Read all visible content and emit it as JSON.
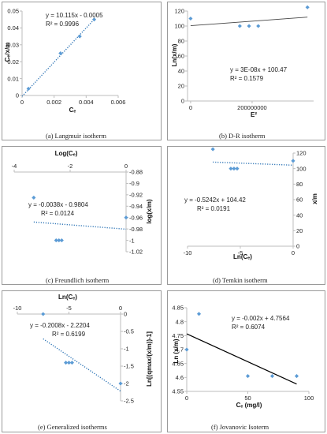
{
  "chart_data": [
    {
      "id": "a",
      "type": "scatter",
      "caption": "(a) Langmuir isotherm",
      "xlabel": "Cₑ",
      "ylabel": "Cₑ/x/m",
      "xlim": [
        0,
        0.006
      ],
      "ylim": [
        0,
        0.05
      ],
      "xticks": [
        0,
        0.002,
        0.004,
        0.006
      ],
      "xtick_labels": [
        "0",
        "0.002",
        "0.004",
        "0.006"
      ],
      "yticks": [
        0,
        0.01,
        0.02,
        0.03,
        0.04,
        0.05
      ],
      "ytick_labels": [
        "0",
        "0.01",
        "0.02",
        "0.03",
        "0.04",
        "0.05"
      ],
      "points": [
        [
          0.0004,
          0.004
        ],
        [
          0.0024,
          0.025
        ],
        [
          0.0036,
          0.035
        ],
        [
          0.0045,
          0.045
        ]
      ],
      "trendline": {
        "slope": 10.115,
        "intercept": -0.0005,
        "range": [
          0,
          0.0045
        ],
        "style": "dotted"
      },
      "equation": "y = 10.115x - 0.0005",
      "r2": "R² = 0.9996"
    },
    {
      "id": "b",
      "type": "scatter",
      "caption": "(b) D-R isotherm",
      "xlabel": "E²",
      "ylabel": "Ln(x/m)",
      "xlim": [
        -10000000,
        400000000
      ],
      "ylim": [
        0,
        120
      ],
      "xticks": [
        0,
        200000000
      ],
      "xtick_labels": [
        "0",
        "200000000"
      ],
      "yticks": [
        0,
        20,
        40,
        60,
        80,
        100,
        120
      ],
      "ytick_labels": [
        "0",
        "20",
        "40",
        "60",
        "80",
        "100",
        "120"
      ],
      "points": [
        [
          0,
          110
        ],
        [
          160000000,
          100
        ],
        [
          190000000,
          100
        ],
        [
          220000000,
          100
        ],
        [
          380000000,
          125
        ]
      ],
      "trendline": {
        "slope": 3e-08,
        "intercept": 100.47,
        "range": [
          0,
          380000000
        ],
        "style": "solid"
      },
      "equation": "y = 3E-08x + 100.47",
      "r2": "R² = 0.1579"
    },
    {
      "id": "c",
      "type": "scatter",
      "caption": "(c) Freundlich isotherm",
      "xlabel": "Log(Cₑ)",
      "ylabel": "log(x/m)",
      "xlim": [
        -4,
        0
      ],
      "ylim": [
        -1.02,
        -0.88
      ],
      "xticks": [
        -4,
        -2,
        0
      ],
      "xtick_labels": [
        "-4",
        "-2",
        "0"
      ],
      "yticks": [
        -0.88,
        -0.9,
        -0.92,
        -0.94,
        -0.96,
        -0.98,
        -1,
        -1.02
      ],
      "ytick_labels": [
        "-0.88",
        "-0.9",
        "-0.92",
        "-0.94",
        "-0.96",
        "-0.98",
        "-1",
        "-1.02"
      ],
      "points": [
        [
          -3.3,
          -0.925
        ],
        [
          -2.5,
          -1.0
        ],
        [
          -2.4,
          -1.0
        ],
        [
          -2.3,
          -1.0
        ],
        [
          0,
          -0.96
        ]
      ],
      "trendline": {
        "slope": -0.0038,
        "intercept": -0.9804,
        "range": [
          -3.3,
          0
        ],
        "style": "dotted"
      },
      "equation": "y = -0.0038x - 0.9804",
      "r2": "R² = 0.0124"
    },
    {
      "id": "d",
      "type": "scatter",
      "caption": "(d) Temkin isotherm",
      "xlabel": "Ln(Cₑ)",
      "ylabel": "x/m",
      "xlim": [
        -10,
        0
      ],
      "ylim": [
        0,
        120
      ],
      "xticks": [
        -10,
        -5,
        0
      ],
      "xtick_labels": [
        "-10",
        "-5",
        "0"
      ],
      "yticks": [
        0,
        20,
        40,
        60,
        80,
        100,
        120
      ],
      "ytick_labels": [
        "0",
        "20",
        "40",
        "60",
        "80",
        "100",
        "120"
      ],
      "points": [
        [
          -7.6,
          125
        ],
        [
          -5.9,
          100
        ],
        [
          -5.6,
          100
        ],
        [
          -5.3,
          100
        ],
        [
          0,
          110
        ]
      ],
      "trendline": {
        "slope": -0.5242,
        "intercept": 104.42,
        "range": [
          -7.6,
          0
        ],
        "style": "dotted"
      },
      "equation": "y = -0.5242x + 104.42",
      "r2": "R² = 0.0191"
    },
    {
      "id": "e",
      "type": "scatter",
      "caption": "(e) Generalized isotherms",
      "xlabel": "Ln(Cₑ)",
      "ylabel": "Ln[(qmax/(x/m))-1]",
      "xlim": [
        -10,
        0
      ],
      "ylim": [
        -2.5,
        0
      ],
      "xticks": [
        -10,
        -5,
        0
      ],
      "xtick_labels": [
        "-10",
        "-5",
        "0"
      ],
      "yticks": [
        0,
        -0.5,
        -1,
        -1.5,
        -2,
        -2.5
      ],
      "ytick_labels": [
        "0",
        "-0.5",
        "-1",
        "-1.5",
        "-2",
        "-2.5"
      ],
      "points": [
        [
          -7.5,
          0
        ],
        [
          -5.3,
          -1.4
        ],
        [
          -5.0,
          -1.4
        ],
        [
          -4.7,
          -1.4
        ],
        [
          0,
          -2.0
        ]
      ],
      "trendline": {
        "slope": -0.2008,
        "intercept": -2.2204,
        "range": [
          -7.5,
          0
        ],
        "style": "dotted"
      },
      "equation": "y = -0.2008x - 2.2204",
      "r2": "R² = 0.6199"
    },
    {
      "id": "f",
      "type": "scatter",
      "caption": "(f) Jovanovic Isoterm",
      "xlabel": "Cₑ (mg/l)",
      "ylabel": "Ln (x/m)",
      "xlim": [
        0,
        100
      ],
      "ylim": [
        4.55,
        4.85
      ],
      "xticks": [
        0,
        50,
        100
      ],
      "xtick_labels": [
        "0",
        "50",
        "100"
      ],
      "yticks": [
        4.55,
        4.6,
        4.65,
        4.7,
        4.75,
        4.8,
        4.85
      ],
      "ytick_labels": [
        "4.55",
        "4.6",
        "4.65",
        "4.7",
        "4.75",
        "4.8",
        "4.85"
      ],
      "points": [
        [
          0,
          4.7
        ],
        [
          10,
          4.828
        ],
        [
          50,
          4.605
        ],
        [
          70,
          4.605
        ],
        [
          90,
          4.605
        ]
      ],
      "trendline": {
        "slope": -0.002,
        "intercept": 4.7564,
        "range": [
          0,
          90
        ],
        "style": "solid"
      },
      "equation": "y = -0.002x + 4.7564",
      "r2": "R² = 0.6074"
    }
  ],
  "colors": {
    "point": "#5b9bd5",
    "trend_dotted": "#2e75b6",
    "trend_solid": "#000000"
  }
}
